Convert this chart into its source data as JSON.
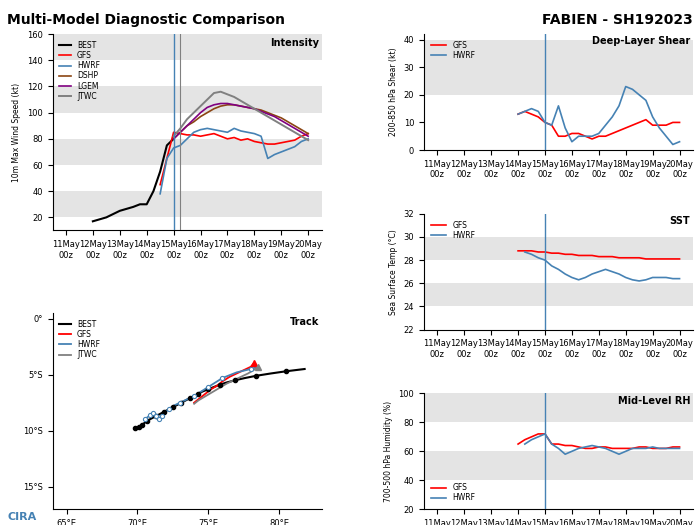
{
  "title_left": "Multi-Model Diagnostic Comparison",
  "title_right": "FABIEN - SH192023",
  "bg_color": "#ffffff",
  "band_color": "#d3d3d3",
  "time_labels": [
    "11May\n00z",
    "12May\n00z",
    "13May\n00z",
    "14May\n00z",
    "15May\n00z",
    "16May\n00z",
    "17May\n00z",
    "18May\n00z",
    "19May\n00z",
    "20May\n00z"
  ],
  "time_ticks_6h": [
    0,
    4,
    8,
    12,
    16,
    20,
    24,
    28,
    32,
    36
  ],
  "xlim_6h": [
    -2,
    38
  ],
  "vline_blue_6h": 16,
  "vline_gray_6h": 17,
  "intensity": {
    "ylabel": "10m Max Wind Speed (kt)",
    "ylim": [
      10,
      160
    ],
    "yticks": [
      20,
      40,
      60,
      80,
      100,
      120,
      140,
      160
    ],
    "band_ranges": [
      [
        20,
        40
      ],
      [
        60,
        80
      ],
      [
        100,
        120
      ],
      [
        140,
        160
      ]
    ],
    "BEST_x": [
      4,
      6,
      8,
      10,
      11,
      12,
      13,
      14,
      15,
      16
    ],
    "BEST_y": [
      17,
      20,
      25,
      28,
      30,
      30,
      40,
      55,
      75,
      80
    ],
    "GFS_x": [
      14,
      15,
      16,
      17,
      18,
      19,
      20,
      21,
      22,
      23,
      24,
      25,
      26,
      27,
      28,
      29,
      30,
      31,
      32,
      33,
      34,
      35,
      36
    ],
    "GFS_y": [
      45,
      65,
      85,
      84,
      83,
      83,
      82,
      83,
      84,
      82,
      80,
      81,
      79,
      80,
      78,
      77,
      76,
      76,
      77,
      78,
      79,
      82,
      84
    ],
    "HWRF_x": [
      14,
      15,
      16,
      17,
      18,
      19,
      20,
      21,
      22,
      23,
      24,
      25,
      26,
      27,
      28,
      29,
      30,
      31,
      32,
      33,
      34,
      35,
      36
    ],
    "HWRF_y": [
      38,
      65,
      73,
      75,
      80,
      85,
      87,
      88,
      87,
      86,
      85,
      88,
      86,
      85,
      84,
      82,
      65,
      68,
      70,
      72,
      74,
      78,
      80
    ],
    "DSHP_x": [
      16,
      17,
      18,
      19,
      20,
      21,
      22,
      23,
      24,
      25,
      26,
      27,
      28,
      29,
      30,
      31,
      32,
      33,
      34,
      35,
      36
    ],
    "DSHP_y": [
      80,
      85,
      90,
      93,
      97,
      100,
      103,
      105,
      106,
      106,
      105,
      104,
      103,
      102,
      100,
      98,
      96,
      93,
      90,
      87,
      84
    ],
    "LGEM_x": [
      16,
      17,
      18,
      19,
      20,
      21,
      22,
      23,
      24,
      25,
      26,
      27,
      28,
      29,
      30,
      31,
      32,
      33,
      34,
      35,
      36
    ],
    "LGEM_y": [
      80,
      85,
      90,
      95,
      100,
      104,
      106,
      107,
      107,
      106,
      105,
      104,
      103,
      101,
      99,
      97,
      94,
      91,
      88,
      85,
      82
    ],
    "JTWC_x": [
      16,
      17,
      18,
      19,
      20,
      21,
      22,
      23,
      24,
      25,
      26,
      27,
      28,
      29,
      30,
      31,
      32,
      33,
      34,
      35,
      36
    ],
    "JTWC_y": [
      82,
      88,
      95,
      100,
      105,
      110,
      115,
      116,
      114,
      112,
      109,
      106,
      103,
      100,
      97,
      94,
      91,
      88,
      85,
      82,
      79
    ]
  },
  "shear": {
    "ylabel": "200-850 hPa Shear (kt)",
    "ylim": [
      0,
      42
    ],
    "yticks": [
      0,
      10,
      20,
      30,
      40
    ],
    "band_ranges": [
      [
        20,
        40
      ]
    ],
    "GFS_x": [
      12,
      13,
      14,
      15,
      16,
      17,
      18,
      19,
      20,
      21,
      22,
      23,
      24,
      25,
      26,
      27,
      28,
      29,
      30,
      31,
      32,
      33,
      34,
      35,
      36
    ],
    "GFS_y": [
      13,
      14,
      13,
      12,
      10,
      9,
      5,
      5,
      6,
      6,
      5,
      4,
      5,
      5,
      6,
      7,
      8,
      9,
      10,
      11,
      9,
      9,
      9,
      10,
      10
    ],
    "HWRF_x": [
      12,
      13,
      14,
      15,
      16,
      17,
      18,
      19,
      20,
      21,
      22,
      23,
      24,
      25,
      26,
      27,
      28,
      29,
      30,
      31,
      32,
      33,
      34,
      35,
      36
    ],
    "HWRF_y": [
      13,
      14,
      15,
      14,
      10,
      9,
      16,
      8,
      3,
      5,
      5,
      5,
      6,
      9,
      12,
      16,
      23,
      22,
      20,
      18,
      12,
      8,
      5,
      2,
      3
    ]
  },
  "sst": {
    "ylabel": "Sea Surface Temp (°C)",
    "ylim": [
      22,
      32
    ],
    "yticks": [
      22,
      24,
      26,
      28,
      30,
      32
    ],
    "band_ranges": [
      [
        24,
        26
      ],
      [
        28,
        30
      ]
    ],
    "GFS_x": [
      12,
      13,
      14,
      15,
      16,
      17,
      18,
      19,
      20,
      21,
      22,
      23,
      24,
      25,
      26,
      27,
      28,
      29,
      30,
      31,
      32,
      33,
      34,
      35,
      36
    ],
    "GFS_y": [
      28.8,
      28.8,
      28.8,
      28.7,
      28.7,
      28.6,
      28.6,
      28.5,
      28.5,
      28.4,
      28.4,
      28.4,
      28.3,
      28.3,
      28.3,
      28.2,
      28.2,
      28.2,
      28.2,
      28.1,
      28.1,
      28.1,
      28.1,
      28.1,
      28.1
    ],
    "HWRF_x": [
      13,
      14,
      15,
      16,
      17,
      18,
      19,
      20,
      21,
      22,
      23,
      24,
      25,
      26,
      27,
      28,
      29,
      30,
      31,
      32,
      33,
      34,
      35,
      36
    ],
    "HWRF_y": [
      28.7,
      28.5,
      28.2,
      28.0,
      27.5,
      27.2,
      26.8,
      26.5,
      26.3,
      26.5,
      26.8,
      27.0,
      27.2,
      27.0,
      26.8,
      26.5,
      26.3,
      26.2,
      26.3,
      26.5,
      26.5,
      26.5,
      26.4,
      26.4
    ]
  },
  "rh": {
    "ylabel": "700-500 hPa Humidity (%)",
    "ylim": [
      20,
      100
    ],
    "yticks": [
      20,
      40,
      60,
      80,
      100
    ],
    "band_ranges": [
      [
        40,
        60
      ],
      [
        80,
        100
      ]
    ],
    "GFS_x": [
      12,
      13,
      14,
      15,
      16,
      17,
      18,
      19,
      20,
      21,
      22,
      23,
      24,
      25,
      26,
      27,
      28,
      29,
      30,
      31,
      32,
      33,
      34,
      35,
      36
    ],
    "GFS_y": [
      65,
      68,
      70,
      72,
      72,
      65,
      65,
      64,
      64,
      63,
      62,
      62,
      63,
      63,
      62,
      62,
      62,
      62,
      63,
      63,
      62,
      62,
      62,
      63,
      63
    ],
    "HWRF_x": [
      13,
      14,
      15,
      16,
      17,
      18,
      19,
      20,
      21,
      22,
      23,
      24,
      25,
      26,
      27,
      28,
      29,
      30,
      31,
      32,
      33,
      34,
      35,
      36
    ],
    "HWRF_y": [
      65,
      68,
      70,
      72,
      65,
      62,
      58,
      60,
      62,
      63,
      64,
      63,
      62,
      60,
      58,
      60,
      62,
      62,
      62,
      63,
      62,
      62,
      62,
      62
    ]
  },
  "track": {
    "xlim": [
      64,
      83
    ],
    "ylim": [
      -17,
      0.5
    ],
    "xticks": [
      65,
      70,
      75,
      80
    ],
    "yticks": [
      0,
      -5,
      -10,
      -15
    ],
    "BEST_lon": [
      69.8,
      70.0,
      70.1,
      70.2,
      70.3,
      70.5,
      70.7,
      71.0,
      71.3,
      71.6,
      71.9,
      72.2,
      72.5,
      72.8,
      73.1,
      73.4,
      73.7,
      74.0,
      74.3,
      74.6,
      75.0,
      75.4,
      75.8,
      76.3,
      76.9,
      77.6,
      78.4,
      79.4,
      80.5,
      81.8
    ],
    "BEST_lat": [
      -9.8,
      -9.8,
      -9.7,
      -9.6,
      -9.5,
      -9.3,
      -9.1,
      -8.9,
      -8.7,
      -8.5,
      -8.3,
      -8.1,
      -7.9,
      -7.7,
      -7.5,
      -7.3,
      -7.1,
      -6.9,
      -6.7,
      -6.5,
      -6.3,
      -6.1,
      -5.9,
      -5.7,
      -5.5,
      -5.3,
      -5.1,
      -4.9,
      -4.7,
      -4.5
    ],
    "BEST_marker_idx": [
      0,
      2,
      4,
      6,
      8,
      10,
      12,
      14,
      16,
      18,
      20,
      22,
      24,
      26,
      28
    ],
    "GFS_lon": [
      74.0,
      74.3,
      74.6,
      74.9,
      75.2,
      75.6,
      76.0,
      76.5,
      77.0,
      77.5,
      78.0,
      78.2
    ],
    "GFS_lat": [
      -7.5,
      -7.2,
      -6.9,
      -6.6,
      -6.3,
      -6.0,
      -5.6,
      -5.2,
      -4.9,
      -4.6,
      -4.3,
      -4.0
    ],
    "HWRF_lon": [
      70.5,
      70.7,
      70.9,
      71.0,
      71.1,
      71.2,
      71.3,
      71.4,
      71.5,
      71.6,
      71.7,
      71.9,
      72.2,
      72.5,
      73.0,
      73.5,
      74.0,
      74.5,
      75.0,
      75.5,
      76.0,
      77.0,
      78.0,
      78.5
    ],
    "HWRF_lat": [
      -9.0,
      -8.8,
      -8.6,
      -8.5,
      -8.4,
      -8.5,
      -8.7,
      -8.9,
      -9.0,
      -8.9,
      -8.7,
      -8.4,
      -8.1,
      -7.8,
      -7.5,
      -7.2,
      -6.9,
      -6.5,
      -6.1,
      -5.7,
      -5.3,
      -4.8,
      -4.5,
      -4.3
    ],
    "HWRF_marker_idx": [
      0,
      2,
      4,
      6,
      8,
      10,
      12,
      14,
      16,
      18,
      20,
      22
    ],
    "JTWC_lon": [
      74.0,
      74.3,
      74.7,
      75.1,
      75.5,
      75.9,
      76.3,
      76.8,
      77.3,
      77.8,
      78.2,
      78.5
    ],
    "JTWC_lat": [
      -7.6,
      -7.3,
      -7.0,
      -6.7,
      -6.4,
      -6.1,
      -5.8,
      -5.5,
      -5.2,
      -4.9,
      -4.6,
      -4.3
    ]
  }
}
